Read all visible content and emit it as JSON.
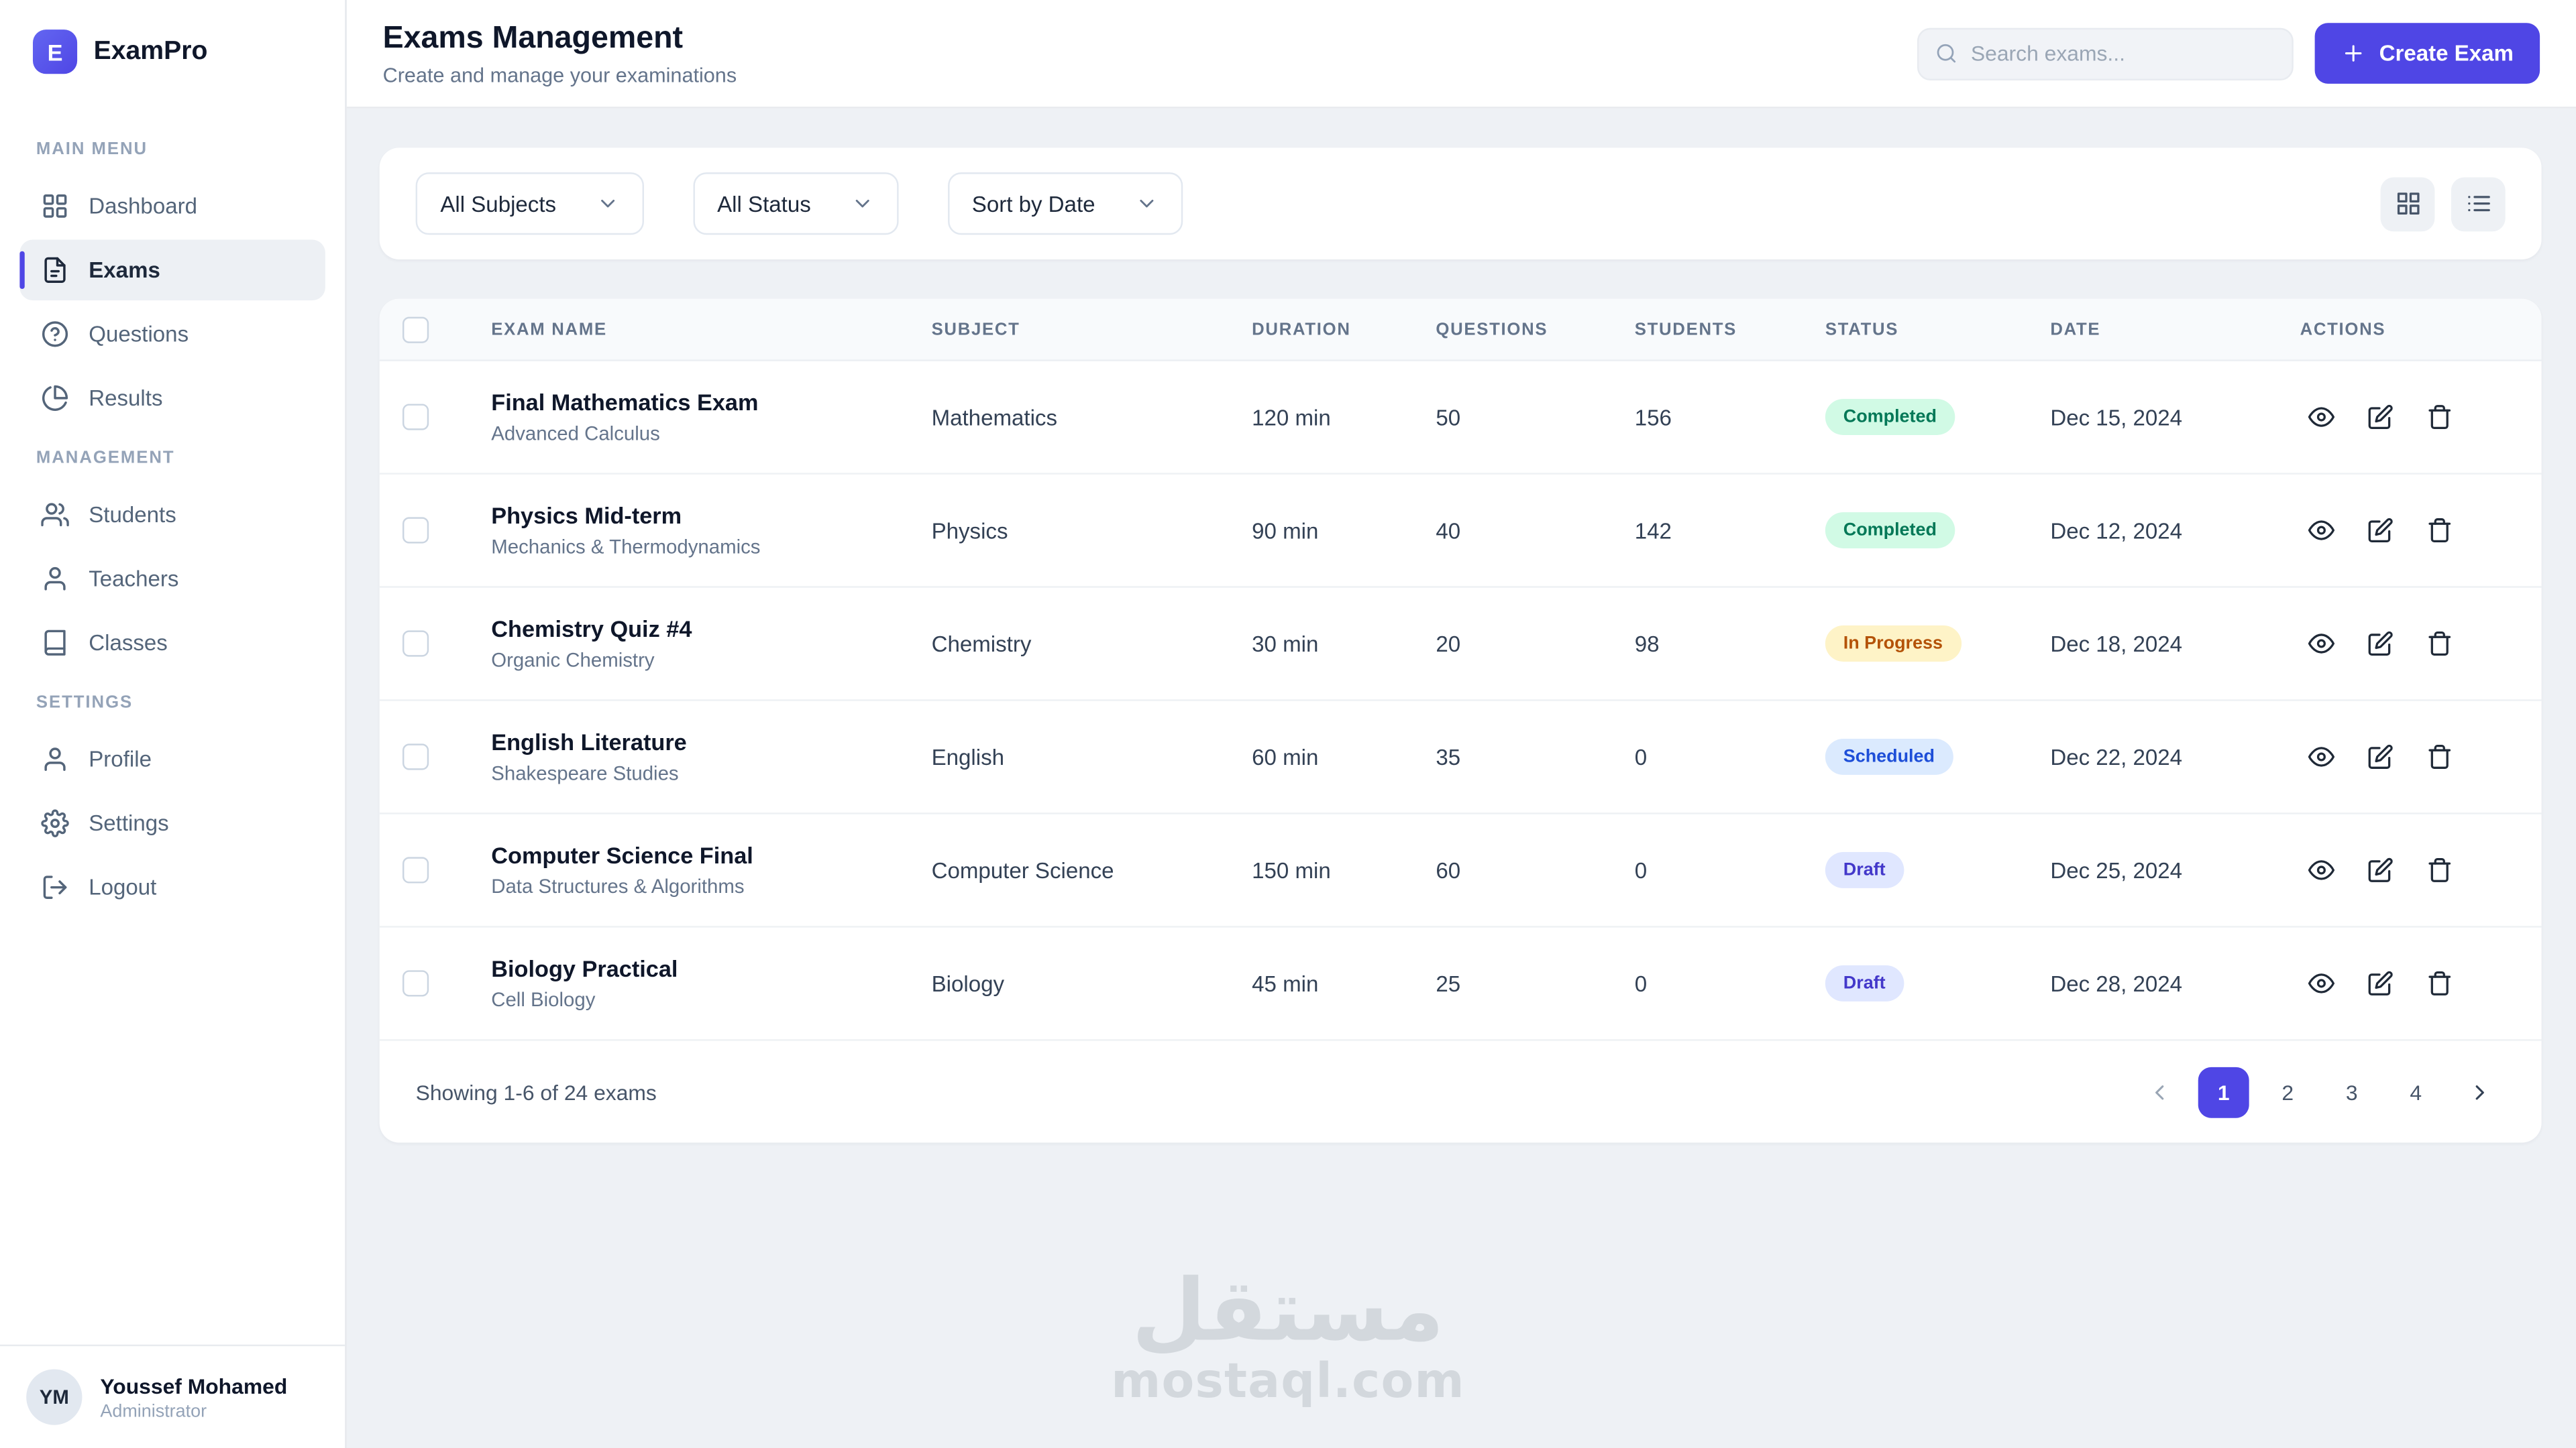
{
  "app": {
    "name": "ExamPro",
    "logo_letter": "E"
  },
  "sidebar": {
    "sections": [
      {
        "label": "MAIN MENU",
        "items": [
          {
            "label": "Dashboard",
            "icon": "dashboard",
            "active": false
          },
          {
            "label": "Exams",
            "icon": "exams",
            "active": true
          },
          {
            "label": "Questions",
            "icon": "questions",
            "active": false
          },
          {
            "label": "Results",
            "icon": "results",
            "active": false
          }
        ]
      },
      {
        "label": "MANAGEMENT",
        "items": [
          {
            "label": "Students",
            "icon": "students",
            "active": false
          },
          {
            "label": "Teachers",
            "icon": "teachers",
            "active": false
          },
          {
            "label": "Classes",
            "icon": "classes",
            "active": false
          }
        ]
      },
      {
        "label": "SETTINGS",
        "items": [
          {
            "label": "Profile",
            "icon": "profile",
            "active": false
          },
          {
            "label": "Settings",
            "icon": "settings",
            "active": false
          },
          {
            "label": "Logout",
            "icon": "logout",
            "active": false
          }
        ]
      }
    ],
    "user": {
      "initials": "YM",
      "name": "Youssef Mohamed",
      "role": "Administrator"
    }
  },
  "header": {
    "title": "Exams Management",
    "subtitle": "Create and manage your examinations",
    "search_placeholder": "Search exams...",
    "create_button": "Create Exam"
  },
  "filters": {
    "subject": "All Subjects",
    "status": "All Status",
    "sort": "Sort by Date"
  },
  "table": {
    "columns": [
      "Exam Name",
      "Subject",
      "Duration",
      "Questions",
      "Students",
      "Status",
      "Date",
      "Actions"
    ],
    "rows": [
      {
        "name": "Final Mathematics Exam",
        "description": "Advanced Calculus",
        "subject": "Mathematics",
        "duration": "120 min",
        "questions": "50",
        "students": "156",
        "status": "Completed",
        "date": "Dec 15, 2024"
      },
      {
        "name": "Physics Mid-term",
        "description": "Mechanics & Thermodynamics",
        "subject": "Physics",
        "duration": "90 min",
        "questions": "40",
        "students": "142",
        "status": "Completed",
        "date": "Dec 12, 2024"
      },
      {
        "name": "Chemistry Quiz #4",
        "description": "Organic Chemistry",
        "subject": "Chemistry",
        "duration": "30 min",
        "questions": "20",
        "students": "98",
        "status": "In Progress",
        "date": "Dec 18, 2024"
      },
      {
        "name": "English Literature",
        "description": "Shakespeare Studies",
        "subject": "English",
        "duration": "60 min",
        "questions": "35",
        "students": "0",
        "status": "Scheduled",
        "date": "Dec 22, 2024"
      },
      {
        "name": "Computer Science Final",
        "description": "Data Structures & Algorithms",
        "subject": "Computer Science",
        "duration": "150 min",
        "questions": "60",
        "students": "0",
        "status": "Draft",
        "date": "Dec 25, 2024"
      },
      {
        "name": "Biology Practical",
        "description": "Cell Biology",
        "subject": "Biology",
        "duration": "45 min",
        "questions": "25",
        "students": "0",
        "status": "Draft",
        "date": "Dec 28, 2024"
      }
    ]
  },
  "status_styles": {
    "Completed": {
      "bg": "#d1fae5",
      "text": "#047857"
    },
    "In Progress": {
      "bg": "#fef3c7",
      "text": "#b45309"
    },
    "Scheduled": {
      "bg": "#dbeafe",
      "text": "#1d4ed8"
    },
    "Draft": {
      "bg": "#e0e7ff",
      "text": "#4338ca"
    }
  },
  "pagination": {
    "summary": "Showing 1-6 of 24 exams",
    "pages": [
      "1",
      "2",
      "3",
      "4"
    ],
    "active_page": "1"
  },
  "colors": {
    "accent": "#4f46e5",
    "completed": "#d1fae5",
    "in_progress": "#fef3c7",
    "scheduled": "#dbeafe",
    "draft": "#e0e7ff"
  },
  "watermark": {
    "line1": "مستقل",
    "line2": "mostaql.com"
  }
}
